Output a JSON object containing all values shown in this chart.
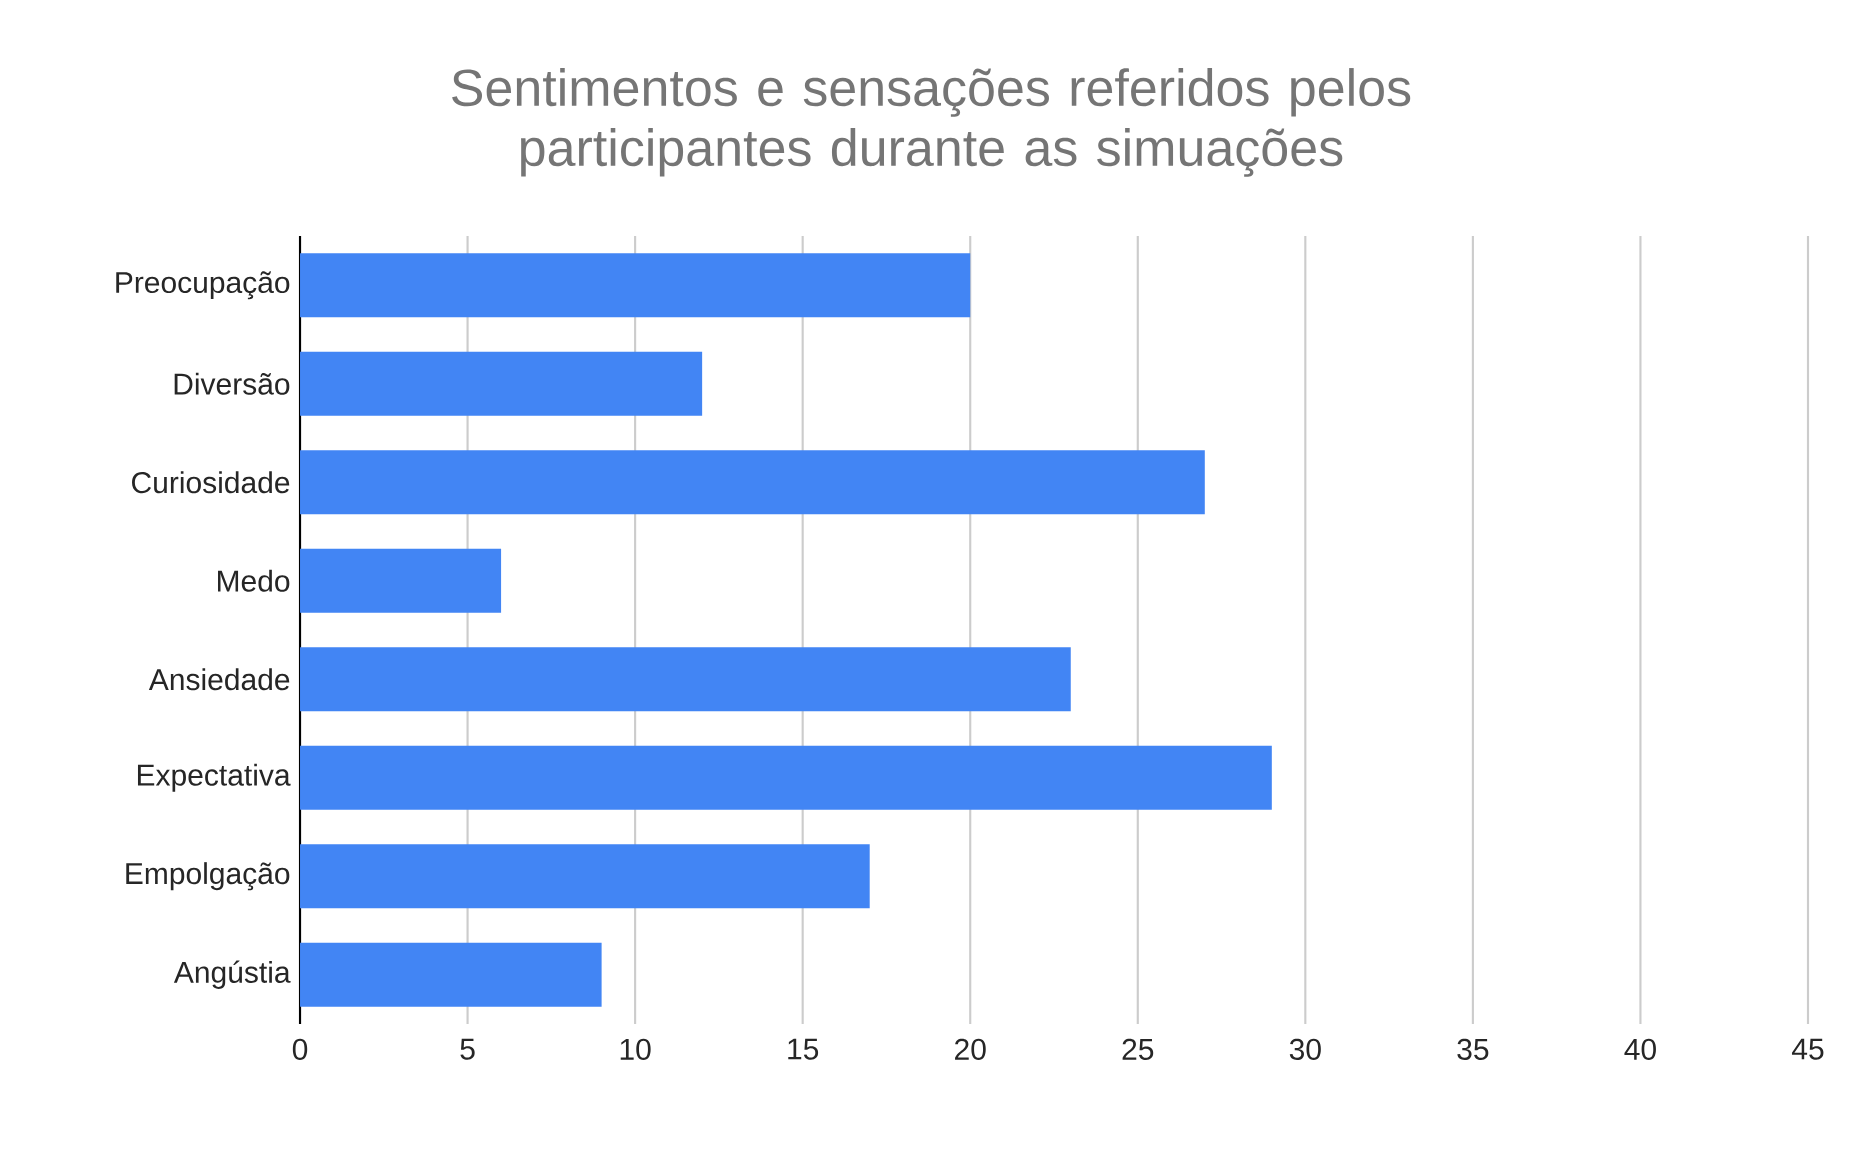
{
  "chart_data": {
    "type": "bar",
    "orientation": "horizontal",
    "title": "Sentimentos e sensações referidos pelos participantes durante as simuações",
    "categories": [
      "Preocupação",
      "Diversão",
      "Curiosidade",
      "Medo",
      "Ansiedade",
      "Expectativa",
      "Empolgação",
      "Angústia"
    ],
    "values": [
      20,
      12,
      27,
      6,
      23,
      29,
      17,
      9
    ],
    "color": "#4285f4",
    "xlim": [
      0,
      45
    ],
    "xticks": [
      0,
      5,
      10,
      15,
      20,
      25,
      30,
      35,
      40,
      45
    ],
    "grid": "x"
  }
}
